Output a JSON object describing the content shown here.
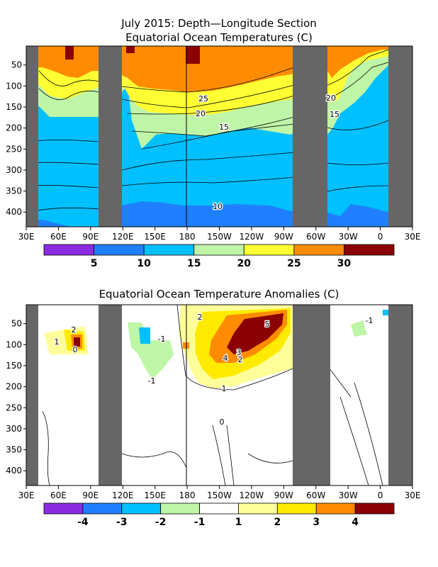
{
  "chart_data": [
    {
      "type": "heatmap",
      "title": "July 2015: Depth—Longitude Section",
      "subtitle": "Equatorial Ocean Temperatures (C)",
      "x_ticks": [
        "30E",
        "60E",
        "90E",
        "120E",
        "150E",
        "180",
        "150W",
        "120W",
        "90W",
        "60W",
        "30W",
        "0",
        "30E"
      ],
      "y_ticks": [
        "50",
        "100",
        "150",
        "200",
        "250",
        "300",
        "350",
        "400"
      ],
      "y_values": [
        50,
        100,
        150,
        200,
        250,
        300,
        350,
        400
      ],
      "ylim": [
        435,
        5
      ],
      "legend_labels": [
        "5",
        "10",
        "15",
        "20",
        "25",
        "30"
      ],
      "legend_colors": [
        "#8a2be2",
        "#1f7fff",
        "#00c0ff",
        "#bff5a7",
        "#ffff33",
        "#ff8c00",
        "#8b0000"
      ],
      "contour_labels": [
        "25",
        "20",
        "15",
        "10",
        "20",
        "15"
      ],
      "bands": [
        {
          "range": "<5",
          "color": "#8a2be2"
        },
        {
          "range": "5-10",
          "color": "#1f7fff"
        },
        {
          "range": "10-15",
          "color": "#00c0ff"
        },
        {
          "range": "15-20",
          "color": "#bff5a7"
        },
        {
          "range": "20-25",
          "color": "#ffff33"
        },
        {
          "range": "25-30",
          "color": "#ff8c00"
        },
        {
          "range": ">30",
          "color": "#8b0000"
        }
      ]
    },
    {
      "type": "heatmap",
      "title": "Equatorial Ocean Temperature Anomalies (C)",
      "x_ticks": [
        "30E",
        "60E",
        "90E",
        "120E",
        "150E",
        "180",
        "150W",
        "120W",
        "90W",
        "60W",
        "30W",
        "0",
        "30E"
      ],
      "y_ticks": [
        "50",
        "100",
        "150",
        "200",
        "250",
        "300",
        "350",
        "400"
      ],
      "y_values": [
        50,
        100,
        150,
        200,
        250,
        300,
        350,
        400
      ],
      "ylim": [
        435,
        5
      ],
      "legend_labels": [
        "-4",
        "-3",
        "-2",
        "-1",
        "1",
        "2",
        "3",
        "4"
      ],
      "legend_colors": [
        "#8a2be2",
        "#1f7fff",
        "#00c0ff",
        "#bff5a7",
        "#ffffff",
        "#ffff99",
        "#ffea00",
        "#ff8c00",
        "#8b0000"
      ],
      "contour_labels": [
        "5",
        "4",
        "3",
        "2",
        "2",
        "1",
        "2",
        "1",
        "0",
        "-1",
        "-1",
        "0",
        "-1"
      ]
    }
  ],
  "colors": {
    "land": "#666666"
  }
}
